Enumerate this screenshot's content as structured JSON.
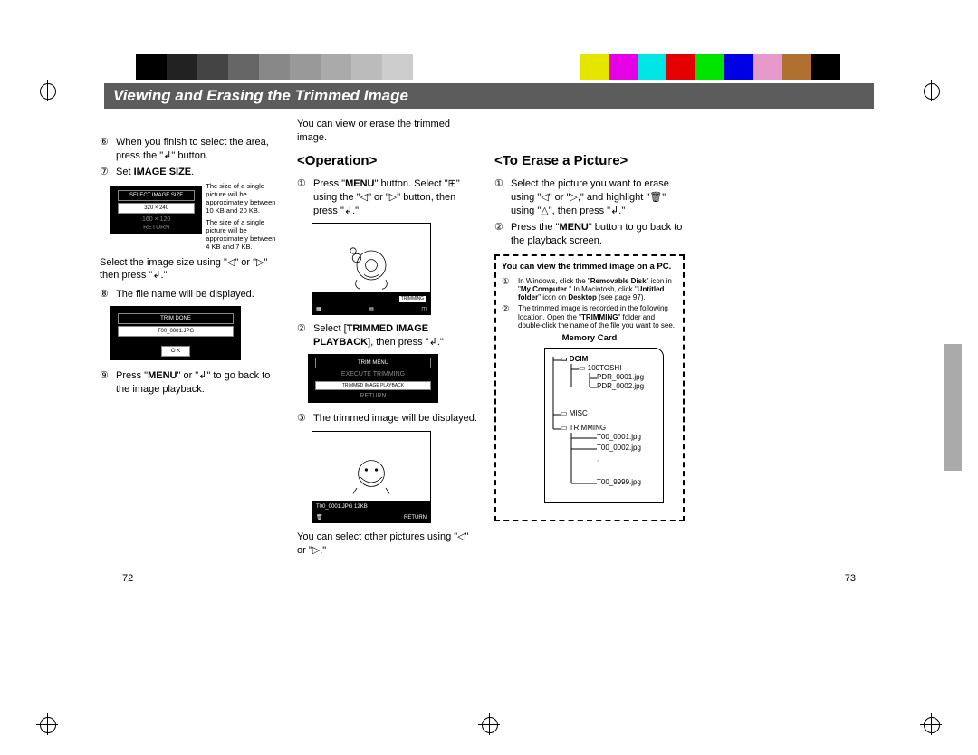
{
  "section_title": "Viewing and Erasing the Trimmed Image",
  "page_left": "72",
  "page_right": "73",
  "glyphs": {
    "enter": "↲",
    "left": "◁",
    "right": "▷",
    "up": "△",
    "trash": "🗑",
    "grid": "⊞"
  },
  "col_left": {
    "step6_num": "⑥",
    "step6": "When you finish to select the area, press the \"↲\" button.",
    "step7_num": "⑦",
    "step7": "Set ",
    "step7_bold": "IMAGE SIZE",
    "step7_tail": ".",
    "lcd1_header": "SELECT IMAGE SIZE",
    "lcd1_line1": "320  ×  240",
    "lcd1_line2": "160  ×  120",
    "lcd1_line3": "RETURN",
    "note1": "The size of a single picture will be approximately between 10 KB and 20 KB.",
    "note2": "The size of a single picture will be approximately between 4 KB and 7 KB.",
    "select_line": "Select the image size using \"◁\" or \"▷\" then press \"↲.\"",
    "step8_num": "⑧",
    "step8": "The file name will be displayed.",
    "lcd2_header": "TRIM DONE",
    "lcd2_line1": "T00_0001.JPG",
    "lcd2_ok": "O K",
    "step9_num": "⑨",
    "step9a": "Press \"",
    "step9_menu": "MENU",
    "step9b": "\" or \"↲\" to go back to the image playback."
  },
  "col_mid": {
    "intro": "You can view or erase the trimmed image.",
    "operation_head": "<Operation>",
    "s1_num": "①",
    "s1a": "Press \"",
    "s1_menu": "MENU",
    "s1b": "\" button. Select \"⊞\" using the \"◁\" or \"▷\" button, then press \"↲.\"",
    "toolbar_tag": "TRIMMING",
    "s2_num": "②",
    "s2a": "Select [",
    "s2_bold": "TRIMMED IMAGE PLAYBACK",
    "s2b": "], then press \"↲.\"",
    "lcd3_header": "TRIM MENU",
    "lcd3_line1": "EXECUTE TRIMMING",
    "lcd3_line2": "TRIMMED IMAGE PLAYBACK",
    "lcd3_line3": "RETURN",
    "s3_num": "③",
    "s3": "The trimmed image will be displayed.",
    "barline": "T00_0001.JPG   12KB",
    "barline2": "RETURN",
    "conclusion": "You can select other pictures using \"◁\" or \"▷.\""
  },
  "col_right": {
    "erase_head": "<To Erase a Picture>",
    "e1_num": "①",
    "e1": "Select the picture you want to erase using \"◁\" or \"▷,\" and highlight \"🗑\" using \"△\", then press \"↲.\"",
    "e2_num": "②",
    "e2a": "Press the \"",
    "e2_menu": "MENU",
    "e2b": "\" button to go back to the playback screen."
  },
  "dashed": {
    "lead_bold": "You can view the trimmed image on a PC.",
    "d1_num": "①",
    "d1a": "In Windows, click the \"",
    "d1_b1": "Removable Disk",
    "d1b": "\" icon in \"",
    "d1_b2": "My Computer",
    "d1c": ".\" In Macintosh, click \"",
    "d1_b3": "Untitled folder",
    "d1d": "\" icon on ",
    "d1_b4": "Desktop",
    "d1e": " (see page 97).",
    "d2_num": "②",
    "d2a": "The trimmed image is recorded in the following location. Open the \"",
    "d2_b1": "TRIMMING",
    "d2b": "\" folder and double-click the name of the file you want to see.",
    "mem_head": "Memory Card",
    "tree": {
      "dcim": "DCIM",
      "toshi": "100TOSHI",
      "f1": "PDR_0001.jpg",
      "f2": "PDR_0002.jpg",
      "misc": "MISC",
      "trimming": "TRIMMING",
      "t1": "T00_0001.jpg",
      "t2": "T00_0002.jpg",
      "tdots": ":",
      "t3": "T00_9999.jpg"
    }
  },
  "colorbar": {
    "grays": [
      "#000",
      "#222",
      "#444",
      "#666",
      "#888",
      "#999",
      "#aaa",
      "#bbb",
      "#ccc",
      "#fff"
    ],
    "colors": [
      "#e5e500",
      "#e500e5",
      "#00e5e5",
      "#e50000",
      "#00e500",
      "#0000e5",
      "#e59acb",
      "#b07030",
      "#000"
    ]
  }
}
